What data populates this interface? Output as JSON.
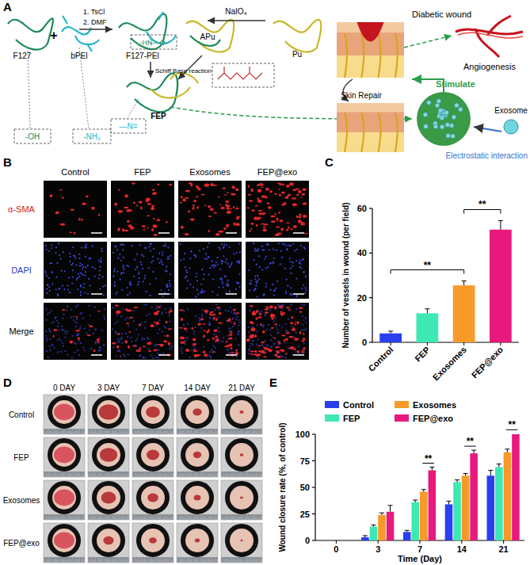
{
  "panel_labels": [
    "A",
    "B",
    "C",
    "D",
    "E"
  ],
  "diagram": {
    "f127": "F127",
    "plus": "+",
    "bpei": "bPEI",
    "step1": "1. TsCl",
    "step2": "2. DMF",
    "f127_pei": "F127-PEI",
    "schiff": "Schiff Base reaction",
    "apu": "APu",
    "naio4": "NaIO₄",
    "pu": "Pu",
    "fep": "FEP",
    "oh": "-OH",
    "nh2": "-NH₂",
    "hno": "-HN—O-",
    "imine": "—N=",
    "wound": "Diabetic wound",
    "angio": "Angiogenesis",
    "repair": "Skin Repair",
    "stim": "Stimulate",
    "exosome": "Exosome",
    "electro": "Electrostatic interaction"
  },
  "fluorescence": {
    "columns": [
      "Control",
      "FEP",
      "Exosomes",
      "FEP@exo"
    ],
    "rows": [
      "α-SMA",
      "DAPI",
      "Merge"
    ]
  },
  "wound_photos": {
    "columns": [
      "0 DAY",
      "3 DAY",
      "7 DAY",
      "14 DAY",
      "21 DAY"
    ],
    "rows": [
      "Control",
      "FEP",
      "Exosomes",
      "FEP@exo"
    ]
  },
  "chart_data": [
    {
      "type": "bar",
      "y_label": "Number of vessels in wound (per field)",
      "categories": [
        "Control",
        "FEP",
        "Exosomes",
        "FEP@exo"
      ],
      "values": [
        4,
        13,
        25.5,
        50.5
      ],
      "errors": [
        1,
        2,
        2,
        4
      ],
      "colors": [
        "#2a3ff0",
        "#3ee8b5",
        "#f79a2a",
        "#e8197c"
      ],
      "ylim": [
        0,
        60
      ],
      "yticks": [
        0,
        20,
        40,
        60
      ],
      "grid": false,
      "annotations": [
        {
          "text": "**",
          "from": "Control",
          "to": "Exosomes"
        },
        {
          "text": "**",
          "from": "Exosomes",
          "to": "FEP@exo"
        }
      ]
    },
    {
      "type": "bar",
      "y_label": "Wound closure rate (%, of control)",
      "x_label": "Time (Day)",
      "categories": [
        "0",
        "3",
        "7",
        "14",
        "21"
      ],
      "series": [
        {
          "name": "Control",
          "color": "#2a3ff0",
          "values": [
            0,
            3,
            8,
            34,
            61
          ],
          "errors": [
            0,
            1.5,
            1.5,
            3,
            5
          ]
        },
        {
          "name": "FEP",
          "color": "#3ee8b5",
          "values": [
            0,
            13,
            36,
            55,
            69
          ],
          "errors": [
            0,
            1.5,
            2,
            2,
            3
          ]
        },
        {
          "name": "Exosomes",
          "color": "#f79a2a",
          "values": [
            0,
            24,
            46,
            61,
            83
          ],
          "errors": [
            0,
            2,
            2,
            2,
            3
          ]
        },
        {
          "name": "FEP@exo",
          "color": "#e8197c",
          "values": [
            0,
            27,
            66,
            82,
            100
          ],
          "errors": [
            0,
            6,
            3,
            3,
            0.5
          ]
        }
      ],
      "ylim": [
        0,
        100
      ],
      "yticks": [
        0,
        25,
        50,
        75,
        100
      ],
      "grid": false,
      "legend": "top-left",
      "annotations": [
        {
          "text": "**",
          "category": "7"
        },
        {
          "text": "**",
          "category": "14"
        },
        {
          "text": "**",
          "category": "21"
        }
      ]
    }
  ]
}
